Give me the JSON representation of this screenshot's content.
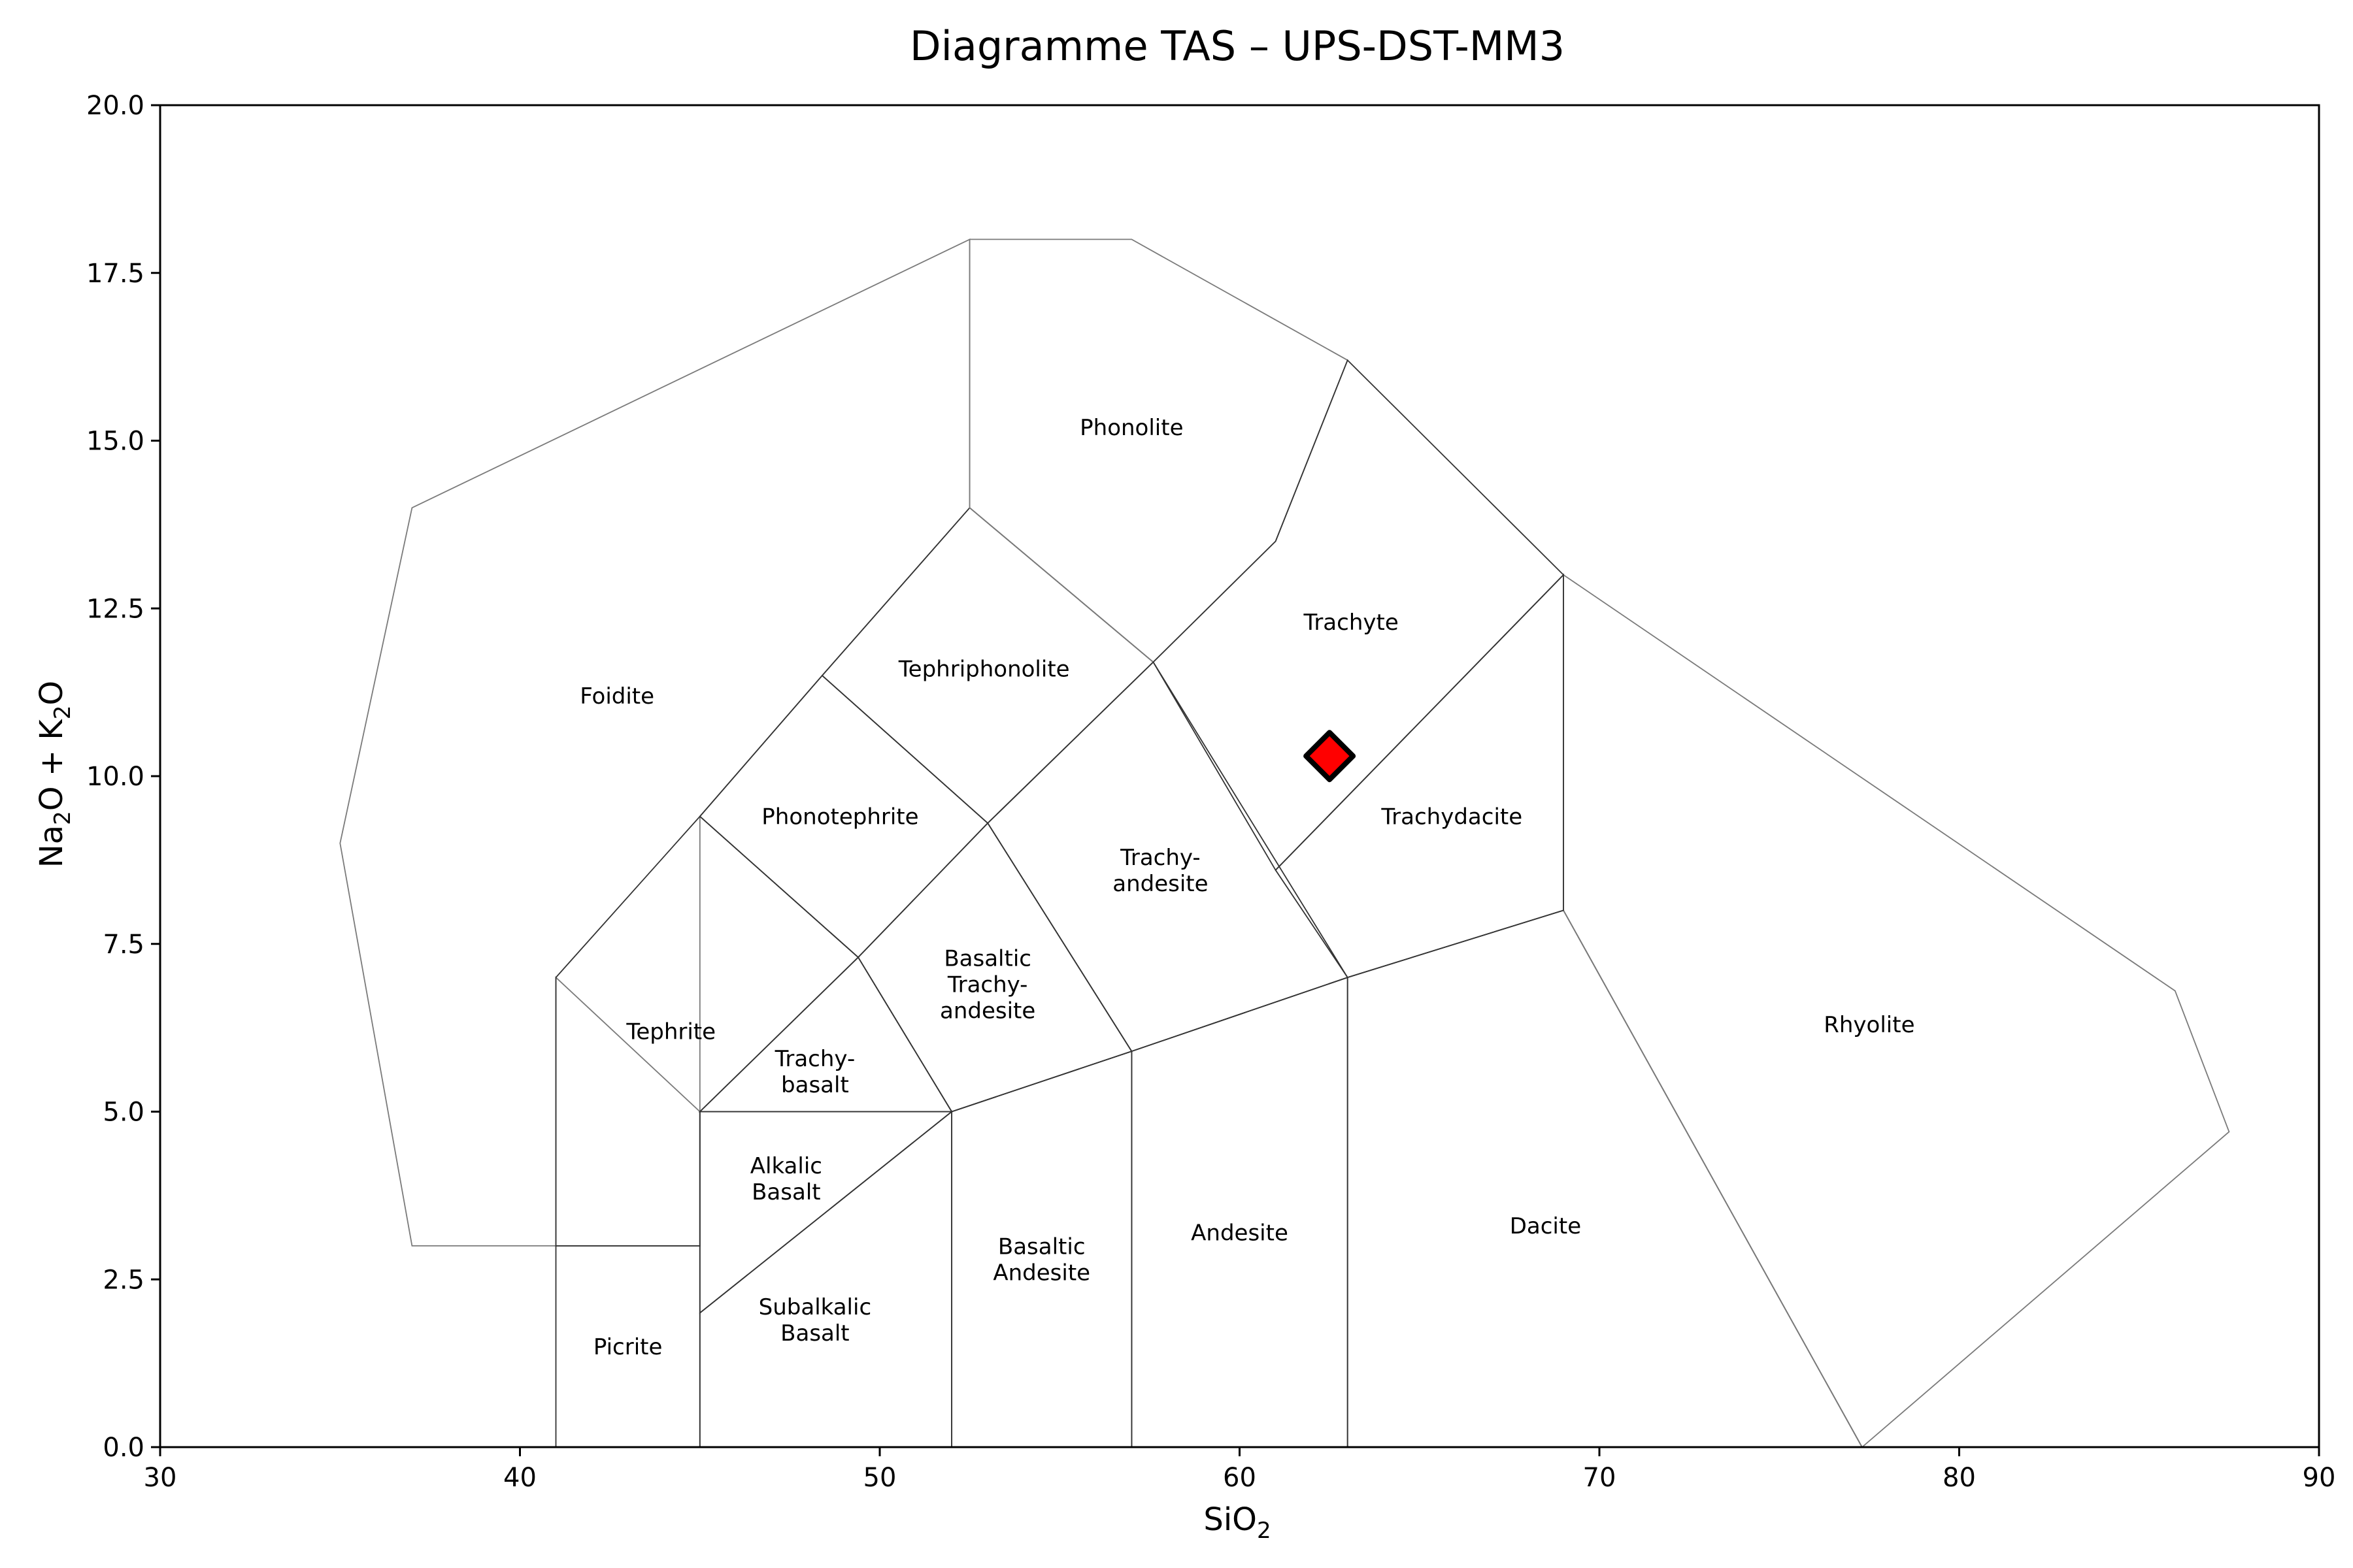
{
  "chart_data": {
    "type": "scatter",
    "title": "Diagramme TAS – UPS-DST-MM3",
    "xlabel": {
      "base1": "SiO",
      "sub1": "2"
    },
    "ylabel": {
      "base1": "Na",
      "sub1": "2",
      "base2": "O + K",
      "sub2": "2",
      "base3": "O"
    },
    "xlim": [
      30,
      90
    ],
    "ylim": [
      0,
      20
    ],
    "xticks": [
      30,
      40,
      50,
      60,
      70,
      80,
      90
    ],
    "xtick_labels": [
      "30",
      "40",
      "50",
      "60",
      "70",
      "80",
      "90"
    ],
    "yticks": [
      0,
      2.5,
      5,
      7.5,
      10,
      12.5,
      15,
      17.5,
      20
    ],
    "ytick_labels": [
      "0.0",
      "2.5",
      "5.0",
      "7.5",
      "10.0",
      "12.5",
      "15.0",
      "17.5",
      "20.0"
    ],
    "grid": false,
    "highlight_color": "#efe6ff",
    "marker_color": "#ff0000",
    "marker_edge_color": "#000000",
    "fields": [
      {
        "name": "Foidite",
        "label_lines": [
          "Foidite"
        ],
        "label_at": [
          42.7,
          11.2
        ],
        "outer": true,
        "poly": [
          [
            52.5,
            18
          ],
          [
            37,
            14
          ],
          [
            35,
            9
          ],
          [
            37,
            3
          ],
          [
            45,
            3
          ],
          [
            45,
            5
          ],
          [
            41,
            7
          ],
          [
            41,
            3
          ],
          [
            45,
            3
          ],
          [
            45,
            9.4
          ],
          [
            48.4,
            11.5
          ],
          [
            52.5,
            14
          ]
        ]
      },
      {
        "name": "Picrite",
        "label_lines": [
          "Picrite"
        ],
        "label_at": [
          43,
          1.5
        ],
        "poly": [
          [
            41,
            0
          ],
          [
            41,
            3
          ],
          [
            45,
            3
          ],
          [
            45,
            0
          ]
        ]
      },
      {
        "name": "Subalkalic Basalt",
        "label_lines": [
          "Subalkalic",
          "Basalt"
        ],
        "label_at": [
          48.2,
          1.9
        ],
        "poly": [
          [
            45,
            0
          ],
          [
            45,
            2
          ],
          [
            52,
            5
          ],
          [
            52,
            0
          ]
        ]
      },
      {
        "name": "Alkalic Basalt",
        "label_lines": [
          "Alkalic",
          "Basalt"
        ],
        "label_at": [
          47.4,
          4.0
        ],
        "poly": [
          [
            45,
            2
          ],
          [
            45,
            5
          ],
          [
            52,
            5
          ]
        ]
      },
      {
        "name": "Basaltic Andesite",
        "label_lines": [
          "Basaltic",
          "Andesite"
        ],
        "label_at": [
          54.5,
          2.8
        ],
        "poly": [
          [
            52,
            0
          ],
          [
            52,
            5
          ],
          [
            57,
            5.9
          ],
          [
            57,
            0
          ]
        ]
      },
      {
        "name": "Andesite",
        "label_lines": [
          "Andesite"
        ],
        "label_at": [
          60,
          3.2
        ],
        "poly": [
          [
            57,
            0
          ],
          [
            57,
            5.9
          ],
          [
            63,
            7
          ],
          [
            63,
            0
          ]
        ]
      },
      {
        "name": "Dacite",
        "label_lines": [
          "Dacite"
        ],
        "label_at": [
          68.5,
          3.3
        ],
        "poly": [
          [
            63,
            0
          ],
          [
            63,
            7
          ],
          [
            69,
            8
          ],
          [
            77.3,
            0
          ]
        ]
      },
      {
        "name": "Rhyolite",
        "label_lines": [
          "Rhyolite"
        ],
        "label_at": [
          77.5,
          6.3
        ],
        "outer": true,
        "poly": [
          [
            69,
            8
          ],
          [
            69,
            13
          ],
          [
            86,
            6.8
          ],
          [
            87.5,
            4.7
          ],
          [
            77.3,
            0
          ]
        ]
      },
      {
        "name": "Tephrite",
        "label_lines": [
          "Tephrite"
        ],
        "label_at": [
          44.2,
          6.2
        ],
        "poly": [
          [
            41,
            3
          ],
          [
            41,
            7
          ],
          [
            45,
            9.4
          ],
          [
            49.4,
            7.3
          ],
          [
            45,
            5
          ],
          [
            45,
            3
          ]
        ]
      },
      {
        "name": "Trachy-basalt",
        "label_lines": [
          "Trachy-",
          "basalt"
        ],
        "label_at": [
          48.2,
          5.6
        ],
        "poly": [
          [
            45,
            5
          ],
          [
            49.4,
            7.3
          ],
          [
            52,
            5
          ]
        ]
      },
      {
        "name": "Basaltic Trachy-andesite",
        "label_lines": [
          "Basaltic",
          "Trachy-",
          "andesite"
        ],
        "label_at": [
          53,
          6.9
        ],
        "poly": [
          [
            52,
            5
          ],
          [
            49.4,
            7.3
          ],
          [
            53,
            9.3
          ],
          [
            57,
            5.9
          ]
        ]
      },
      {
        "name": "Trachy-andesite",
        "label_lines": [
          "Trachy-",
          "andesite"
        ],
        "label_at": [
          57.8,
          8.6
        ],
        "poly": [
          [
            57,
            5.9
          ],
          [
            53,
            9.3
          ],
          [
            57.6,
            11.7
          ],
          [
            63,
            7
          ]
        ]
      },
      {
        "name": "Phonotephrite",
        "label_lines": [
          "Phonotephrite"
        ],
        "label_at": [
          48.9,
          9.4
        ],
        "poly": [
          [
            45,
            9.4
          ],
          [
            48.4,
            11.5
          ],
          [
            53,
            9.3
          ],
          [
            49.4,
            7.3
          ]
        ]
      },
      {
        "name": "Tephriphonolite",
        "label_lines": [
          "Tephriphonolite"
        ],
        "label_at": [
          52.9,
          11.6
        ],
        "poly": [
          [
            48.4,
            11.5
          ],
          [
            52.5,
            14
          ],
          [
            57.6,
            11.7
          ],
          [
            53,
            9.3
          ]
        ]
      },
      {
        "name": "Phonolite",
        "label_lines": [
          "Phonolite"
        ],
        "label_at": [
          57,
          15.2
        ],
        "outer": true,
        "poly": [
          [
            52.5,
            14
          ],
          [
            52.5,
            18
          ],
          [
            57,
            18
          ],
          [
            63,
            16.2
          ],
          [
            61,
            13.5
          ],
          [
            57.6,
            11.7
          ]
        ]
      },
      {
        "name": "Trachyte",
        "label_lines": [
          "Trachyte"
        ],
        "label_at": [
          63.1,
          12.3
        ],
        "highlight": true,
        "poly": [
          [
            57.6,
            11.7
          ],
          [
            61,
            13.5
          ],
          [
            63,
            16.2
          ],
          [
            69,
            13
          ],
          [
            61,
            8.6
          ]
        ]
      },
      {
        "name": "Trachydacite",
        "label_lines": [
          "Trachydacite"
        ],
        "label_at": [
          65.9,
          9.4
        ],
        "poly": [
          [
            61,
            8.6
          ],
          [
            69,
            13
          ],
          [
            69,
            8
          ],
          [
            63,
            7
          ]
        ]
      }
    ],
    "points": [
      {
        "x": 62.5,
        "y": 10.3
      }
    ]
  }
}
